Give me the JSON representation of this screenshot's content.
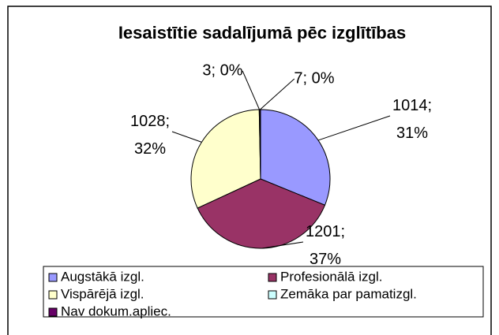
{
  "chart_data": {
    "type": "pie",
    "title": "Iesaistītie sadalījumā pēc izglītības",
    "categories": [
      "Augstākā izgl.",
      "Profesionālā izgl.",
      "Vispārējā izgl.",
      "Zemāka par pamatizgl.",
      "Nav dokum.apliec."
    ],
    "values": [
      1014,
      1201,
      1028,
      3,
      7
    ],
    "value_labels": [
      "1014; 31%",
      "1201; 37%",
      "1028; 32%",
      "3; 0%",
      "7; 0%"
    ],
    "colors": [
      "#9999ff",
      "#993366",
      "#ffffcc",
      "#ccffff",
      "#660066"
    ],
    "legend": "bottom"
  }
}
